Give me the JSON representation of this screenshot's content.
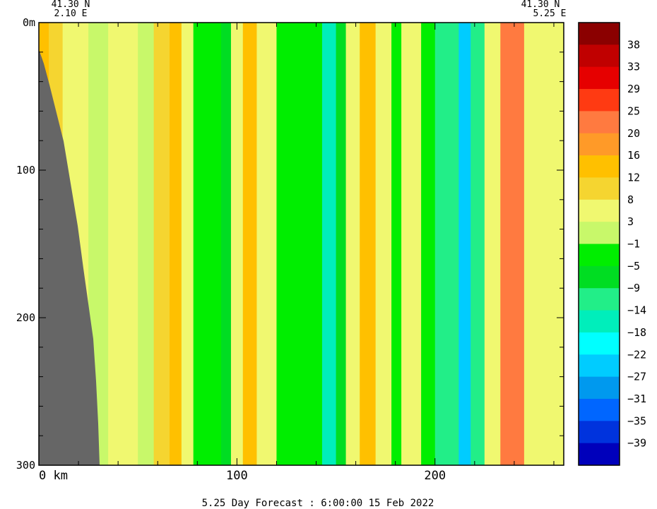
{
  "chart_data": {
    "type": "heatmap",
    "title": "",
    "footer": "5.25 Day Forecast :  6:00:00  15 Feb 2022",
    "start_location": {
      "lat": "41.30 N",
      "lon": "2.10 E"
    },
    "end_location": {
      "lat": "41.30 N",
      "lon": "5.25 E"
    },
    "x_axis": {
      "unit_label": "0 km",
      "range": [
        0,
        265
      ],
      "ticks": [
        0,
        100,
        200
      ],
      "tick_labels": [
        "0 km",
        "100",
        "200"
      ]
    },
    "y_axis": {
      "top_label": "0m",
      "range": [
        0,
        300
      ],
      "ticks": [
        0,
        100,
        200,
        300
      ],
      "tick_labels": [
        "0m",
        "100",
        "200",
        "300"
      ],
      "inverted": true
    },
    "colorbar": {
      "labels": [
        "38",
        "33",
        "29",
        "25",
        "20",
        "16",
        "12",
        "8",
        "3",
        "−1",
        "−5",
        "−9",
        "−14",
        "−18",
        "−22",
        "−27",
        "−31",
        "−35",
        "−39"
      ],
      "colors": [
        "#8b0000",
        "#c00000",
        "#e60000",
        "#ff3a12",
        "#ff7a40",
        "#ff9a28",
        "#ffc000",
        "#f5d530",
        "#f0f870",
        "#c8f86a",
        "#00ee00",
        "#00dd22",
        "#22ee88",
        "#00eebb",
        "#00ffff",
        "#00ccff",
        "#0099ee",
        "#0066ff",
        "#0033dd",
        "#0000bb"
      ]
    },
    "bands": [
      {
        "x": [
          0,
          5
        ],
        "value": 12
      },
      {
        "x": [
          5,
          12
        ],
        "value": 8
      },
      {
        "x": [
          12,
          25
        ],
        "value": 3
      },
      {
        "x": [
          25,
          35
        ],
        "value": 0
      },
      {
        "x": [
          35,
          50
        ],
        "value": 3
      },
      {
        "x": [
          50,
          58
        ],
        "value": 0
      },
      {
        "x": [
          58,
          66
        ],
        "value": 8
      },
      {
        "x": [
          66,
          72
        ],
        "value": 14
      },
      {
        "x": [
          72,
          78
        ],
        "value": 3
      },
      {
        "x": [
          78,
          92
        ],
        "value": -3
      },
      {
        "x": [
          92,
          97
        ],
        "value": -8
      },
      {
        "x": [
          97,
          103
        ],
        "value": 6
      },
      {
        "x": [
          103,
          110
        ],
        "value": 14
      },
      {
        "x": [
          110,
          120
        ],
        "value": 6
      },
      {
        "x": [
          120,
          143
        ],
        "value": -3
      },
      {
        "x": [
          143,
          150
        ],
        "value": -18
      },
      {
        "x": [
          150,
          155
        ],
        "value": -8
      },
      {
        "x": [
          155,
          162
        ],
        "value": 6
      },
      {
        "x": [
          162,
          170
        ],
        "value": 14
      },
      {
        "x": [
          170,
          178
        ],
        "value": 6
      },
      {
        "x": [
          178,
          183
        ],
        "value": -3
      },
      {
        "x": [
          183,
          193
        ],
        "value": 6
      },
      {
        "x": [
          193,
          200
        ],
        "value": -3
      },
      {
        "x": [
          200,
          212
        ],
        "value": -14
      },
      {
        "x": [
          212,
          218
        ],
        "value": -24
      },
      {
        "x": [
          218,
          225
        ],
        "value": -10
      },
      {
        "x": [
          225,
          233
        ],
        "value": 3
      },
      {
        "x": [
          233,
          245
        ],
        "value": 20
      },
      {
        "x": [
          245,
          265
        ],
        "value": 6
      }
    ]
  }
}
